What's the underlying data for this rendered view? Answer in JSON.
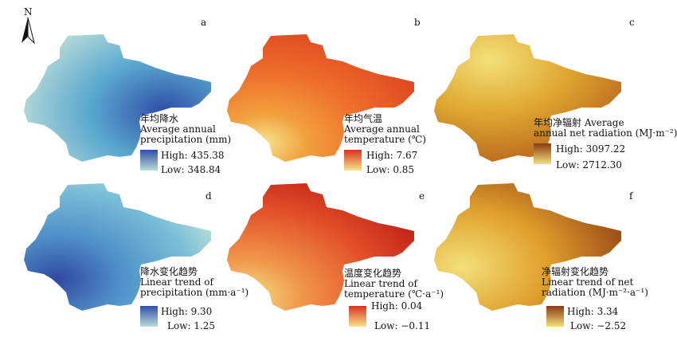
{
  "north_label": "N",
  "colors": {
    "precip_high": "#2f4ea6",
    "precip_mid": "#5aa8cf",
    "precip_low": "#b8dcd8",
    "temp_high": "#d8321f",
    "temp_mid": "#ee6f2c",
    "temp_low": "#f6e48a",
    "rad_high": "#8a3a12",
    "rad_mid": "#d9a02b",
    "rad_low": "#f3e07a"
  },
  "panels": [
    {
      "letter": "a",
      "title_cn": "年均降水",
      "title_en_1": "Average annual",
      "title_en_2": "precipitation (mm)",
      "high": "High: 435.38",
      "low": "Low: 348.84"
    },
    {
      "letter": "b",
      "title_cn": "年均气温",
      "title_en_1": "Average annual",
      "title_en_2": "temperature (℃)",
      "high": "High: 7.67",
      "low": "Low: 0.85"
    },
    {
      "letter": "c",
      "title_cn": "年均净辐射 Average",
      "title_en_1": "annual net radiation (MJ·m⁻²)",
      "title_en_2": "",
      "high": "High: 3097.22",
      "low": "Low: 2712.30"
    },
    {
      "letter": "d",
      "title_cn": "降水变化趋势",
      "title_en_1": "Linear trend of",
      "title_en_2": "precipitation (mm·a⁻¹)",
      "high": "High: 9.30",
      "low": "Low: 1.25"
    },
    {
      "letter": "e",
      "title_cn": "温度变化趋势",
      "title_en_1": "Linear trend of",
      "title_en_2": "temperature (℃·a⁻¹)",
      "high": "High: 0.04",
      "low": "Low: −0.11"
    },
    {
      "letter": "f",
      "title_cn": "净辐射变化趋势",
      "title_en_1": "Linear trend of net",
      "title_en_2": "radiation (MJ·m⁻²·a⁻¹)",
      "high": "High: 3.34",
      "low": "Low: −2.52"
    }
  ]
}
